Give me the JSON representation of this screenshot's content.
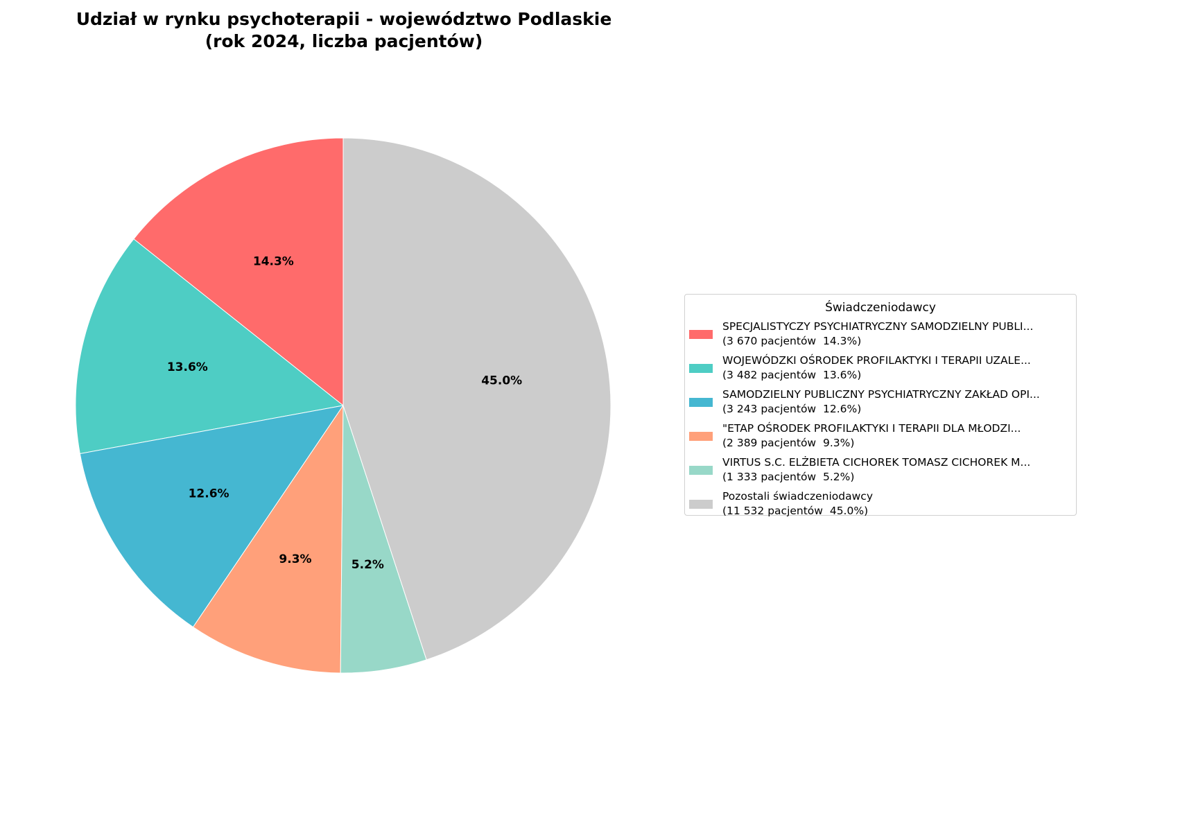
{
  "chart_data": {
    "type": "pie",
    "title": "Udział w rynku psychoterapii - województwo Podlaskie",
    "subtitle": "(rok 2024, liczba pacjentów)",
    "start_angle": 90,
    "direction": "counterclockwise",
    "legend": {
      "title": "Świadczeniodawcy",
      "placement": "right"
    },
    "slices": [
      {
        "name": "SPECJALISTYCZY PSYCHIATRYCZNY SAMODZIELNY PUBLI...",
        "detail": "(3 670 pacjentów  14.3%)",
        "value": 3670,
        "pct_label": "14.3%",
        "color": "#FF6B6B"
      },
      {
        "name": "WOJEWÓDZKI OŚRODEK PROFILAKTYKI I TERAPII UZALE...",
        "detail": "(3 482 pacjentów  13.6%)",
        "value": 3482,
        "pct_label": "13.6%",
        "color": "#4ECDC4"
      },
      {
        "name": "SAMODZIELNY PUBLICZNY PSYCHIATRYCZNY ZAKŁAD OPI...",
        "detail": "(3 243 pacjentów  12.6%)",
        "value": 3243,
        "pct_label": "12.6%",
        "color": "#45B7D1"
      },
      {
        "name": "\"ETAP OŚRODEK PROFILAKTYKI I TERAPII DLA MŁODZI...",
        "detail": "(2 389 pacjentów  9.3%)",
        "value": 2389,
        "pct_label": "9.3%",
        "color": "#FFA07A"
      },
      {
        "name": "VIRTUS S.C. ELŻBIETA CICHOREK TOMASZ CICHOREK M...",
        "detail": "(1 333 pacjentów  5.2%)",
        "value": 1333,
        "pct_label": "5.2%",
        "color": "#98D8C8"
      },
      {
        "name": "Pozostali świadczeniodawcy",
        "detail": "(11 532 pacjentów  45.0%)",
        "value": 11532,
        "pct_label": "45.0%",
        "color": "#CCCCCC"
      }
    ]
  }
}
